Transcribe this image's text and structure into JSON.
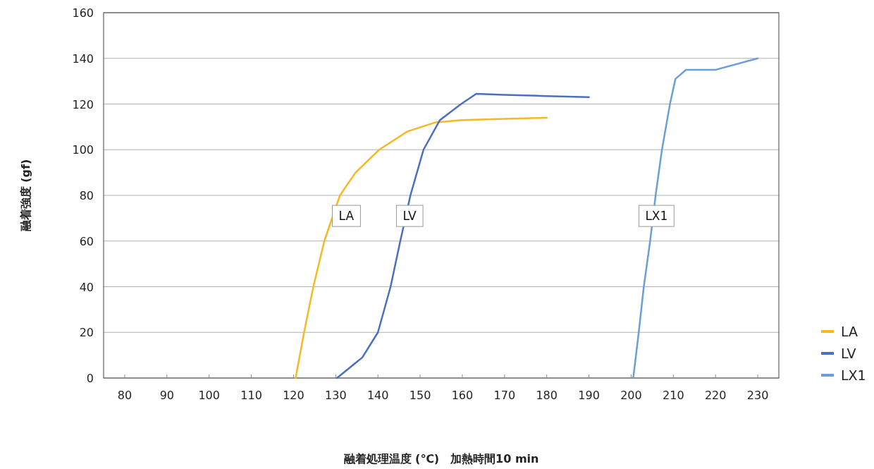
{
  "chart_data": {
    "type": "line",
    "xlabel": "融着処理温度 (℃)　加熱時間10 min",
    "ylabel": "融着強度 (gf)",
    "xlim": [
      75,
      235
    ],
    "ylim": [
      0,
      160
    ],
    "xticks": [
      80,
      90,
      100,
      110,
      120,
      130,
      140,
      150,
      160,
      170,
      180,
      190,
      200,
      210,
      220,
      230
    ],
    "yticks": [
      0,
      20,
      40,
      60,
      80,
      100,
      120,
      140,
      160
    ],
    "grid": "y",
    "legend": "right",
    "series": [
      {
        "name": "LA",
        "color": "#f4b924",
        "x": [
          120.5,
          122.5,
          124.7,
          127.3,
          131,
          134.7,
          140.3,
          147,
          153.7,
          160,
          170,
          180
        ],
        "values": [
          0,
          20,
          40,
          60,
          80,
          90,
          100,
          108,
          112,
          113,
          113.5,
          114
        ]
      },
      {
        "name": "LV",
        "color": "#4a6fbf",
        "x": [
          130.3,
          136.3,
          140,
          143,
          145.3,
          147.7,
          150.8,
          154.7,
          159.7,
          163.3,
          170,
          180,
          190
        ],
        "values": [
          0,
          9,
          20,
          40,
          60,
          80,
          100,
          113,
          120,
          124.5,
          124,
          123.5,
          123
        ]
      },
      {
        "name": "LX1",
        "color": "#6a9fd8",
        "x": [
          200.5,
          201.8,
          203,
          204.5,
          205.8,
          207.3,
          209.2,
          210.5,
          213,
          217,
          220,
          230
        ],
        "values": [
          0,
          20,
          40,
          60,
          80,
          100,
          120,
          131,
          135,
          135,
          135,
          140
        ]
      }
    ],
    "annotations": [
      {
        "text": "LA",
        "x": 132.5,
        "y": 71
      },
      {
        "text": "LV",
        "x": 147.5,
        "y": 71
      },
      {
        "text": "LX1",
        "x": 206,
        "y": 71
      }
    ]
  }
}
